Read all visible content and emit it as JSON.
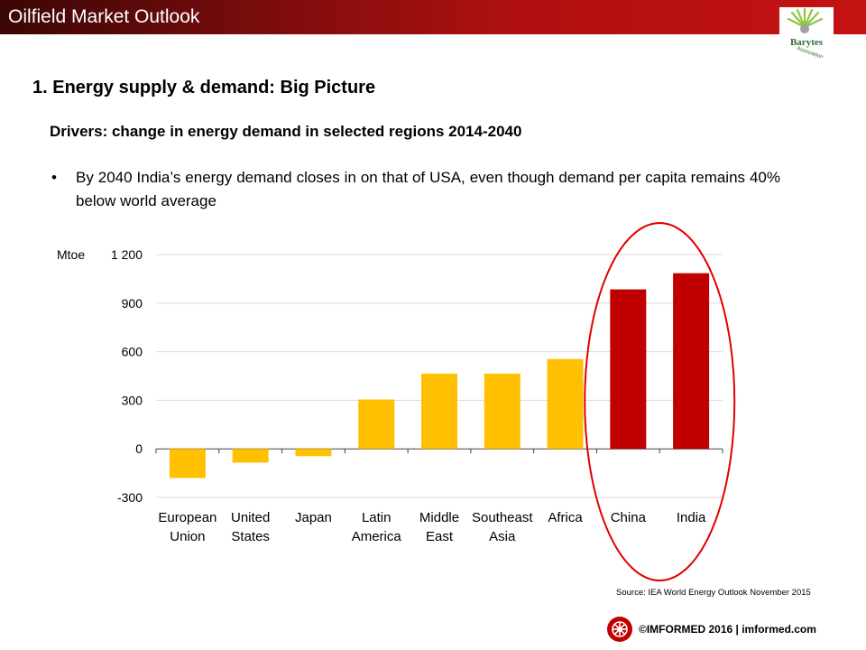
{
  "header": {
    "title": "Oilfield Market Outlook"
  },
  "logo": {
    "text_top": "Barytes",
    "text_bottom": "Association"
  },
  "section": {
    "heading": "1. Energy supply & demand: Big Picture"
  },
  "subheading": "Drivers: change in energy demand in selected regions 2014-2040",
  "bullet": {
    "dot": "•",
    "text": "By 2040 India’s energy demand closes in on that of USA, even though demand per capita remains 40% below world average"
  },
  "source": "Source: IEA World Energy Outlook November 2015",
  "footer": {
    "text": "©IMFORMED 2016  | imformed.com"
  },
  "chart_data": {
    "type": "bar",
    "unit_label": "Mtoe",
    "categories": [
      [
        "European",
        "Union"
      ],
      [
        "United",
        "States"
      ],
      [
        "Japan"
      ],
      [
        "Latin",
        "America"
      ],
      [
        "Middle",
        "East"
      ],
      [
        "Southeast",
        "Asia"
      ],
      [
        "Africa"
      ],
      [
        "China"
      ],
      [
        "India"
      ]
    ],
    "values": [
      -180,
      -85,
      -45,
      305,
      465,
      465,
      555,
      985,
      1085
    ],
    "ylim": [
      -300,
      1200
    ],
    "yticks": [
      -300,
      0,
      300,
      600,
      900,
      1200
    ],
    "ytick_labels": [
      "-300",
      "0",
      "300",
      "600",
      "900",
      "1 200"
    ],
    "grid": true,
    "highlighted": [
      "China",
      "India"
    ],
    "colors": {
      "default": "#ffc000",
      "highlight": "#c00000",
      "grid": "#d9d9d9",
      "axis": "#404040",
      "circle": "#e00000"
    }
  }
}
